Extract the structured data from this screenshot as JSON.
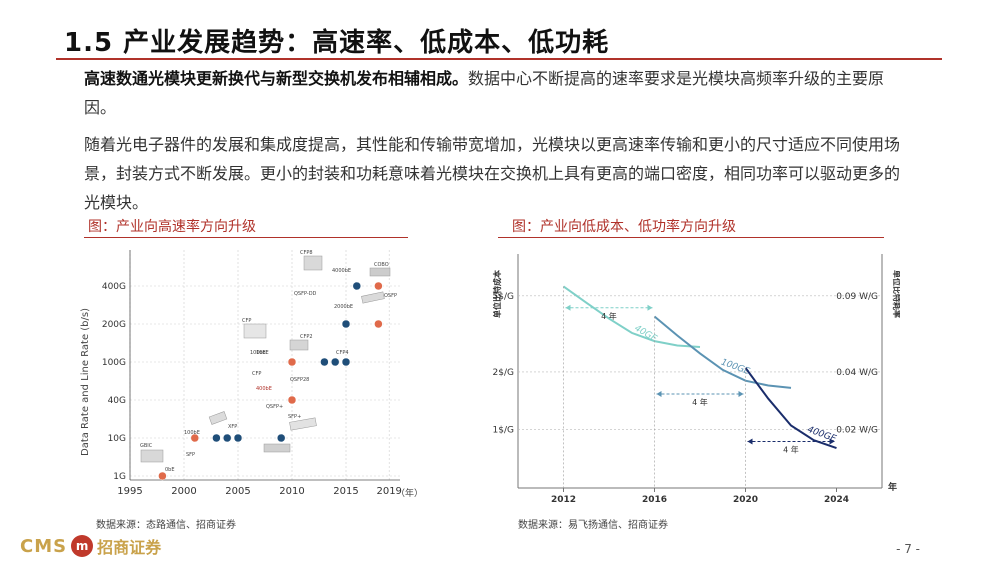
{
  "header": {
    "title": "1.5 产业发展趋势：高速率、低成本、低功耗"
  },
  "body": {
    "p1_bold": "高速数通光模块更新换代与新型交换机发布相辅相成。",
    "p1_rest": "数据中心不断提高的速率要求是光模块高频率升级的主要原因。",
    "p2": "随着光电子器件的发展和集成度提高，其性能和传输带宽增加，光模块以更高速率传输和更小的尺寸适应不同使用场景，封装方式不断发展。更小的封装和功耗意味着光模块在交换机上具有更高的端口密度，相同功率可以驱动更多的光模块。"
  },
  "figures": {
    "left_caption": "图：产业向高速率方向升级",
    "right_caption": "图：产业向低成本、低功率方向升级",
    "left_source": "数据来源：态路通信、招商证券",
    "right_source": "数据来源：易飞扬通信、招商证券"
  },
  "footer": {
    "cms": "CMS",
    "logo_mark": "m",
    "company": "招商证券",
    "page": "- 7 -"
  },
  "chart_data": [
    {
      "type": "scatter",
      "title": "",
      "ylabel": "Data Rate and Line Rate (b/s)",
      "xlabel": "",
      "x_unit": "（年）",
      "x_ticks": [
        1995,
        2000,
        2005,
        2010,
        2015,
        2019
      ],
      "y_ticks": [
        "1G",
        "10G",
        "40G",
        "100G",
        "200G",
        "400G"
      ],
      "grid": true,
      "series": [
        {
          "color": "#e06a4a",
          "points": [
            [
              "1998",
              "1G"
            ],
            [
              "2001",
              "10G"
            ],
            [
              "2010",
              "40G"
            ],
            [
              "2010",
              "100G"
            ],
            [
              "2018",
              "200G"
            ],
            [
              "2018",
              "400G"
            ]
          ]
        },
        {
          "color": "#1f4e79",
          "points": [
            [
              "2003",
              "10G"
            ],
            [
              "2004",
              "10G"
            ],
            [
              "2005",
              "10G"
            ],
            [
              "2009",
              "10G"
            ],
            [
              "2013",
              "100G"
            ],
            [
              "2014",
              "100G"
            ],
            [
              "2015",
              "100G"
            ],
            [
              "2015",
              "200G"
            ],
            [
              "2016",
              "400G"
            ]
          ]
        }
      ],
      "annotations": [
        "GBIC",
        "SFP",
        "100bE",
        "XFP",
        "0bE",
        "10bE",
        "QSFP+",
        "SFP+",
        "400bE",
        "100bE",
        "CFP",
        "CFP",
        "CFP2",
        "CFP4",
        "QSFP28",
        "2000bE",
        "QSFP-DD",
        "CFP8",
        "4000bE",
        "COBO",
        "OSFP"
      ]
    },
    {
      "type": "line",
      "title": "",
      "ylabel_left": "单位比特成本",
      "ylabel_right": "单位比特耗率",
      "xlabel": "年",
      "x_ticks": [
        2012,
        2016,
        2020,
        2024
      ],
      "y_left_ticks": [
        "5$/G",
        "2$/G",
        "1$/G"
      ],
      "y_right_ticks": [
        "0.09 W/G",
        "0.04 W/G",
        "0.02 W/G"
      ],
      "series": [
        {
          "name": "40GE",
          "color": "#7fd0c8",
          "x": [
            2012,
            2013,
            2014,
            2015,
            2016,
            2017,
            2018
          ],
          "y": [
            5.6,
            4.6,
            3.8,
            3.2,
            2.9,
            2.75,
            2.7
          ]
        },
        {
          "name": "100GE",
          "color": "#5b93b3",
          "x": [
            2016,
            2017,
            2018,
            2019,
            2020,
            2021,
            2022
          ],
          "y": [
            3.9,
            3.1,
            2.5,
            2.05,
            1.8,
            1.7,
            1.65
          ]
        },
        {
          "name": "400GE",
          "color": "#1a2d6b",
          "x": [
            2020,
            2021,
            2022,
            2023,
            2024
          ],
          "y": [
            2.1,
            1.45,
            1.05,
            0.88,
            0.8
          ]
        }
      ],
      "arrow_labels": [
        "4 年",
        "4 年",
        "4 年"
      ]
    }
  ]
}
